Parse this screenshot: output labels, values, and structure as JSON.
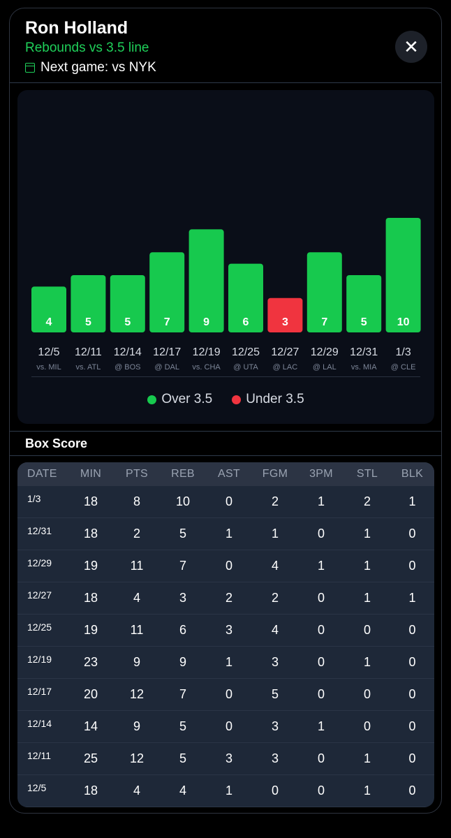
{
  "header": {
    "player_name": "Ron Holland",
    "subtitle": "Rebounds vs 3.5 line",
    "next_game": "Next game: vs NYK",
    "close_label": "✕"
  },
  "colors": {
    "over": "#17c94e",
    "under": "#f0343f",
    "accent": "#1fd05a"
  },
  "chart_data": {
    "type": "bar",
    "line": 3.5,
    "categories": [
      "12/5",
      "12/11",
      "12/14",
      "12/17",
      "12/19",
      "12/25",
      "12/27",
      "12/29",
      "12/31",
      "1/3"
    ],
    "opponents": [
      "vs. MIL",
      "vs. ATL",
      "@ BOS",
      "@ DAL",
      "vs. CHA",
      "@ UTA",
      "@ LAC",
      "@ LAL",
      "vs. MIA",
      "@ CLE"
    ],
    "values": [
      4,
      5,
      5,
      7,
      9,
      6,
      3,
      7,
      5,
      10
    ],
    "ylim": [
      0,
      10
    ],
    "legend": [
      {
        "label": "Over 3.5",
        "color": "#17c94e"
      },
      {
        "label": "Under 3.5",
        "color": "#f0343f"
      }
    ]
  },
  "box_score": {
    "title": "Box Score",
    "columns": [
      "DATE",
      "MIN",
      "PTS",
      "REB",
      "AST",
      "FGM",
      "3PM",
      "STL",
      "BLK"
    ],
    "rows": [
      [
        "1/3",
        "18",
        "8",
        "10",
        "0",
        "2",
        "1",
        "2",
        "1"
      ],
      [
        "12/31",
        "18",
        "2",
        "5",
        "1",
        "1",
        "0",
        "1",
        "0"
      ],
      [
        "12/29",
        "19",
        "11",
        "7",
        "0",
        "4",
        "1",
        "1",
        "0"
      ],
      [
        "12/27",
        "18",
        "4",
        "3",
        "2",
        "2",
        "0",
        "1",
        "1"
      ],
      [
        "12/25",
        "19",
        "11",
        "6",
        "3",
        "4",
        "0",
        "0",
        "0"
      ],
      [
        "12/19",
        "23",
        "9",
        "9",
        "1",
        "3",
        "0",
        "1",
        "0"
      ],
      [
        "12/17",
        "20",
        "12",
        "7",
        "0",
        "5",
        "0",
        "0",
        "0"
      ],
      [
        "12/14",
        "14",
        "9",
        "5",
        "0",
        "3",
        "1",
        "0",
        "0"
      ],
      [
        "12/11",
        "25",
        "12",
        "5",
        "3",
        "3",
        "0",
        "1",
        "0"
      ],
      [
        "12/5",
        "18",
        "4",
        "4",
        "1",
        "0",
        "0",
        "1",
        "0"
      ]
    ]
  }
}
